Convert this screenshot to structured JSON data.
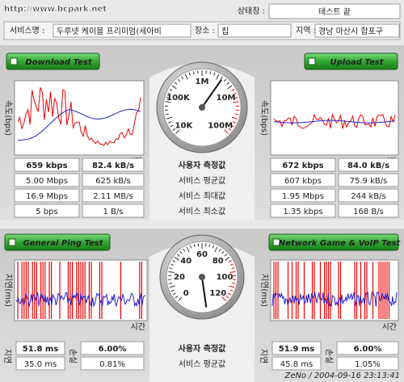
{
  "watermark": "http://www.bcpark.net",
  "status": {
    "label": "상태창 :",
    "value": "테스트 끝"
  },
  "info": {
    "service_label": "서비스명 :",
    "service": "두루넷 케이블 프리미엄(세아비",
    "place_label": "장소 :",
    "place": "집",
    "region_label": "지역 :",
    "region": "경남 마산시 합포구"
  },
  "speed": {
    "download_button": "Download Test",
    "upload_button": "Upload Test",
    "y_label": "속도(bps)",
    "x_label": "시간",
    "gauge_labels": [
      "10K",
      "100K",
      "1M",
      "10M",
      "100M"
    ],
    "row_labels": [
      "사용자 측정값",
      "서비스 평균값",
      "서비스 최대값",
      "서비스 최소값"
    ],
    "download": [
      [
        "659 kbps",
        "82.4 kB/s"
      ],
      [
        "5.00 Mbps",
        "625 kB/s"
      ],
      [
        "16.9 Mbps",
        "2.11 MB/s"
      ],
      [
        "5 bps",
        "1 B/s"
      ]
    ],
    "upload": [
      [
        "672 kbps",
        "84.0 kB/s"
      ],
      [
        "607 kbps",
        "75.9 kB/s"
      ],
      [
        "1.95 Mbps",
        "244 kB/s"
      ],
      [
        "1.35 kbps",
        "168 B/s"
      ]
    ]
  },
  "ping": {
    "ping_button": "General Ping Test",
    "voip_button": "Network Game & VoIP Test",
    "y_label": "지연(ms)",
    "x_label": "시간",
    "gauge_labels": [
      "0",
      "20",
      "40",
      "60",
      "80",
      "100",
      "120"
    ],
    "delay_label": "지연",
    "loss_label": "손실",
    "row_labels": [
      "사용자 측정값",
      "서비스 평균값"
    ],
    "ping": [
      [
        "51.8 ms",
        "6.00%"
      ],
      [
        "35.0 ms",
        "0.81%"
      ]
    ],
    "voip": [
      [
        "51.9 ms",
        "6.00%"
      ],
      [
        "45.8 ms",
        "1.05%"
      ]
    ]
  },
  "footer": "ZeNo / 2004-09-16 23:13:41"
}
